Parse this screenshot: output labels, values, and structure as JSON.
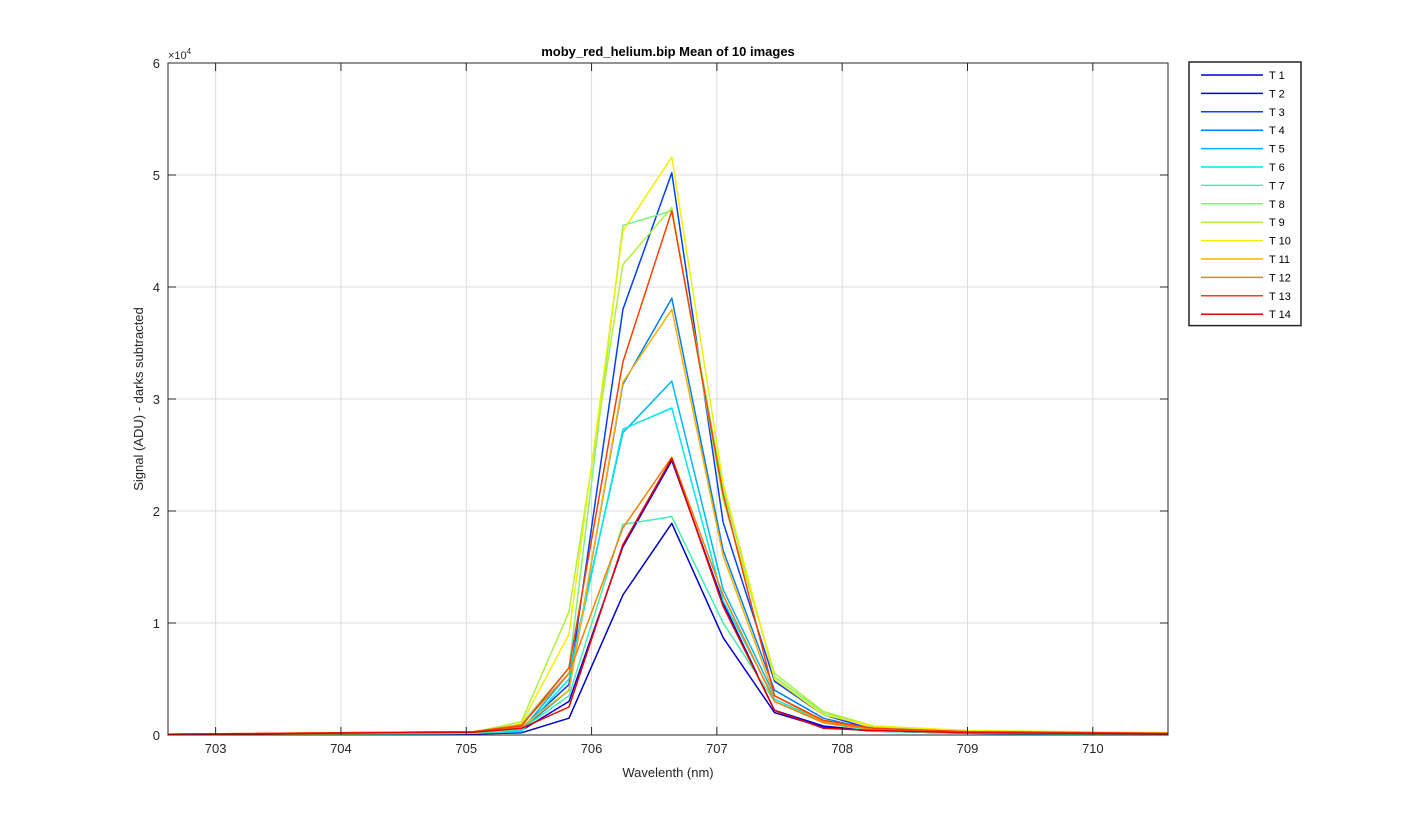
{
  "chart_data": {
    "type": "line",
    "title": "moby_red_helium.bip  Mean of 10 images",
    "xlabel": "Wavelenth (nm)",
    "ylabel": "Signal (ADU) - darks subtracted",
    "xlim": [
      702.62,
      710.6
    ],
    "ylim": [
      0,
      60000
    ],
    "x_ticks": [
      703,
      704,
      705,
      706,
      707,
      708,
      709,
      710
    ],
    "x_tick_labels": [
      "703",
      "704",
      "705",
      "706",
      "707",
      "708",
      "709",
      "710"
    ],
    "y_ticks": [
      0,
      10000,
      20000,
      30000,
      40000,
      50000,
      60000
    ],
    "y_tick_labels": [
      "0",
      "1",
      "2",
      "3",
      "4",
      "5",
      "6"
    ],
    "y_exponent_label": "×10",
    "y_exponent_power": "4",
    "grid": true,
    "legend_position": "outside-right",
    "x": [
      702.62,
      705.06,
      705.44,
      705.82,
      706.25,
      706.64,
      707.05,
      707.46,
      707.85,
      708.25,
      709.0,
      710.6
    ],
    "series": [
      {
        "name": "T 1",
        "color": "#0000c8",
        "values": [
          50,
          100,
          200,
          1500,
          12500,
          18900,
          8700,
          2000,
          700,
          350,
          150,
          80
        ]
      },
      {
        "name": "T 2",
        "color": "#0000e6",
        "values": [
          50,
          120,
          400,
          3000,
          16800,
          24500,
          11800,
          2200,
          800,
          350,
          150,
          80
        ]
      },
      {
        "name": "T 3",
        "color": "#0040ff",
        "values": [
          60,
          150,
          600,
          4500,
          38000,
          50200,
          19000,
          4800,
          1800,
          500,
          200,
          100
        ]
      },
      {
        "name": "T 4",
        "color": "#0080f0",
        "values": [
          60,
          150,
          500,
          4000,
          31300,
          39000,
          16500,
          4000,
          1500,
          450,
          200,
          100
        ]
      },
      {
        "name": "T 5",
        "color": "#00b8f0",
        "values": [
          60,
          150,
          400,
          5500,
          27000,
          31600,
          13000,
          3500,
          1300,
          400,
          200,
          100
        ]
      },
      {
        "name": "T 6",
        "color": "#00e8e8",
        "values": [
          60,
          150,
          300,
          5000,
          27300,
          29200,
          12000,
          3200,
          1200,
          400,
          200,
          100
        ]
      },
      {
        "name": "T 7",
        "color": "#40f0b0",
        "values": [
          50,
          150,
          500,
          3500,
          18800,
          19500,
          10000,
          3000,
          1100,
          350,
          150,
          80
        ]
      },
      {
        "name": "T 8",
        "color": "#80f080",
        "values": [
          60,
          200,
          1000,
          6000,
          45500,
          46800,
          22000,
          5200,
          2000,
          700,
          300,
          150
        ]
      },
      {
        "name": "T 9",
        "color": "#b0f040",
        "values": [
          60,
          250,
          1200,
          11000,
          42000,
          47100,
          21000,
          5500,
          2100,
          800,
          350,
          150
        ]
      },
      {
        "name": "T 10",
        "color": "#f0f000",
        "values": [
          60,
          200,
          1000,
          9000,
          45000,
          51600,
          22500,
          5000,
          1800,
          800,
          400,
          200
        ]
      },
      {
        "name": "T 11",
        "color": "#ffb000",
        "values": [
          60,
          300,
          700,
          4000,
          31500,
          38000,
          16000,
          3500,
          1200,
          500,
          300,
          150
        ]
      },
      {
        "name": "T 12",
        "color": "#ff8000",
        "values": [
          60,
          300,
          900,
          5500,
          18500,
          24800,
          12500,
          3000,
          1100,
          500,
          250,
          150
        ]
      },
      {
        "name": "T 13",
        "color": "#ff4000",
        "values": [
          60,
          300,
          800,
          6000,
          33300,
          46800,
          21500,
          3500,
          1300,
          600,
          300,
          150
        ]
      },
      {
        "name": "T 14",
        "color": "#e80000",
        "values": [
          60,
          250,
          600,
          2500,
          17000,
          24700,
          11500,
          2200,
          600,
          400,
          200,
          120
        ]
      }
    ]
  }
}
